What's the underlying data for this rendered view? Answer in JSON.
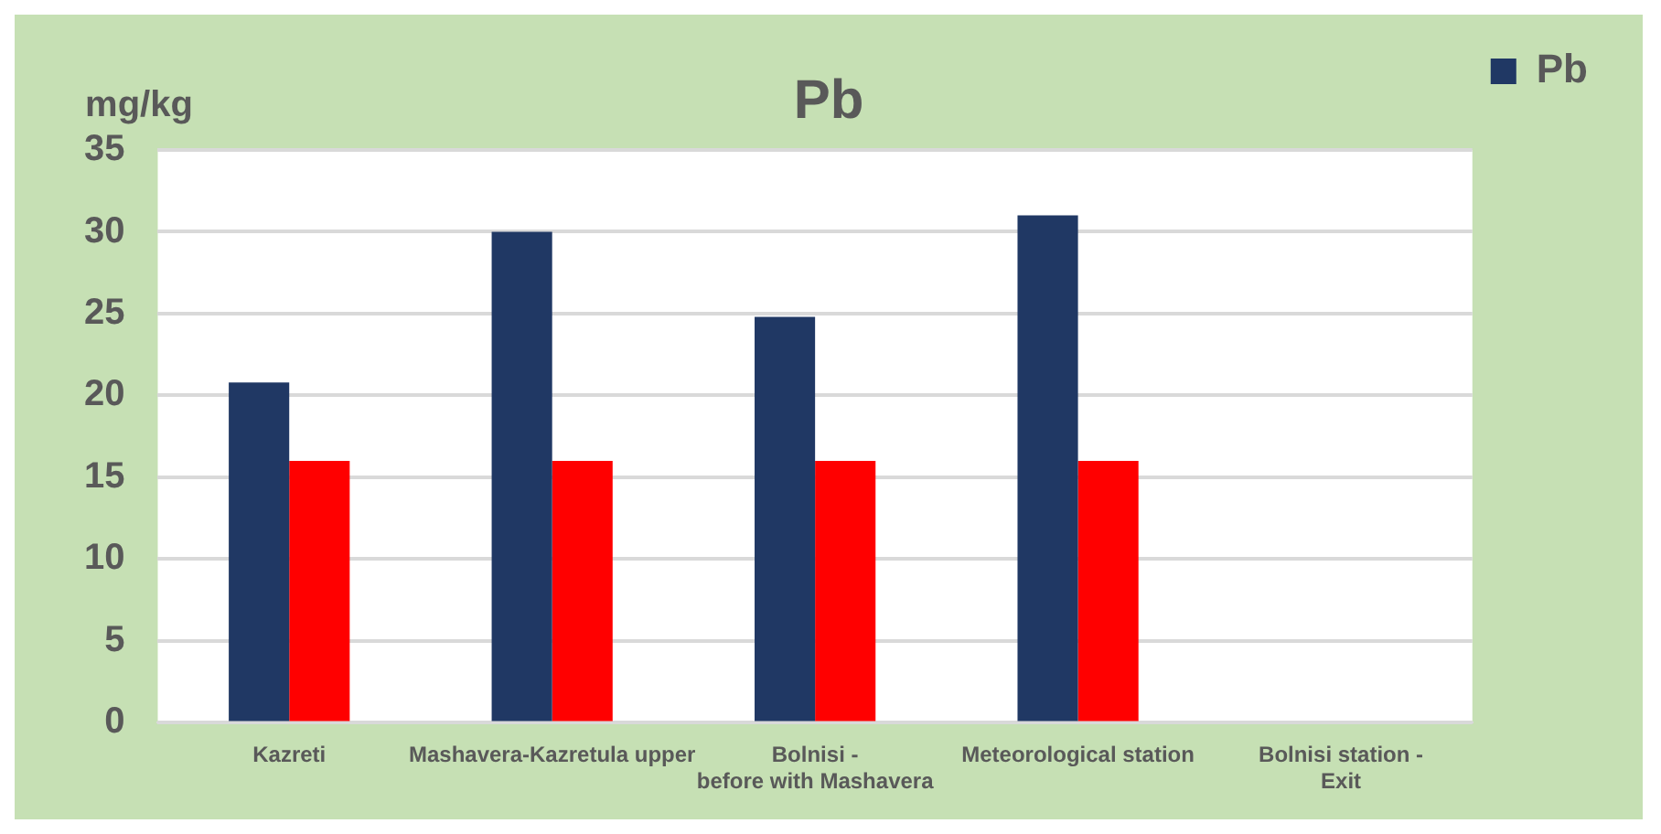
{
  "chart_data": {
    "type": "bar",
    "title": "Pb",
    "ylabel": "mg/kg",
    "categories": [
      "Kazreti",
      "Mashavera-Kazretula upper",
      "Bolnisi - before with Mashavera",
      "Meteorological station",
      "Bolnisi station - Exit"
    ],
    "series": [
      {
        "name": "Pb",
        "color": "#203864",
        "values": [
          20.8,
          30,
          24.8,
          31,
          null
        ]
      },
      {
        "color": "#ff0000",
        "values": [
          16,
          16,
          16,
          16,
          null
        ]
      }
    ],
    "ylim": [
      0,
      35
    ],
    "yticks": [
      0,
      5,
      10,
      15,
      20,
      25,
      30,
      35
    ],
    "grid": "y",
    "legend": "top right"
  }
}
